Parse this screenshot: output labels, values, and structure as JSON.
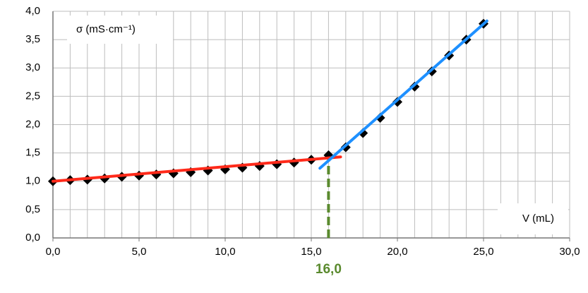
{
  "chart_data": {
    "type": "scatter",
    "y_axis_label": "σ (mS·cm⁻¹)",
    "x_axis_label": "V (mL)",
    "x": [
      0,
      1,
      2,
      3,
      4,
      5,
      6,
      7,
      8,
      9,
      10,
      11,
      12,
      13,
      14,
      15,
      16,
      17,
      18,
      19,
      20,
      21,
      22,
      23,
      24,
      25
    ],
    "series": [
      {
        "color": "#000000",
        "marker": "diamond",
        "values": [
          1.0,
          1.02,
          1.03,
          1.05,
          1.08,
          1.1,
          1.12,
          1.14,
          1.16,
          1.19,
          1.21,
          1.24,
          1.27,
          1.3,
          1.33,
          1.38,
          1.46,
          1.6,
          1.85,
          2.12,
          2.4,
          2.67,
          2.94,
          3.22,
          3.5,
          3.78
        ]
      }
    ],
    "fit_lines": [
      {
        "color": "#ff2a1a",
        "x": [
          0,
          16.7
        ],
        "values": [
          1.0,
          1.43
        ]
      },
      {
        "color": "#1e90ff",
        "x": [
          15.5,
          25.2
        ],
        "values": [
          1.23,
          3.83
        ]
      }
    ],
    "vline": {
      "x": {
        "value": 16,
        "label": "16,0"
      },
      "y": [
        0,
        1.52
      ],
      "color": "#5a8a2e"
    },
    "xlim": [
      0,
      30
    ],
    "xticks": [
      {
        "value": 0,
        "label": "0,0"
      },
      {
        "value": 5,
        "label": "5,0"
      },
      {
        "value": 10,
        "label": "10,0"
      },
      {
        "value": 15,
        "label": "15,0"
      },
      {
        "value": 20,
        "label": "20,0"
      },
      {
        "value": 25,
        "label": "25,0"
      },
      {
        "value": 30,
        "label": "30,0"
      }
    ],
    "xgrid_step": 1,
    "ylim": [
      0,
      4
    ],
    "yticks": [
      {
        "value": 0,
        "label": "0,0"
      },
      {
        "value": 0.5,
        "label": "0,5"
      },
      {
        "value": 1,
        "label": "1,0"
      },
      {
        "value": 1.5,
        "label": "1,5"
      },
      {
        "value": 2,
        "label": "2,0"
      },
      {
        "value": 2.5,
        "label": "2,5"
      },
      {
        "value": 3,
        "label": "3,0"
      },
      {
        "value": 3.5,
        "label": "3,5"
      },
      {
        "value": 4,
        "label": "4,0"
      }
    ],
    "grid": true
  }
}
